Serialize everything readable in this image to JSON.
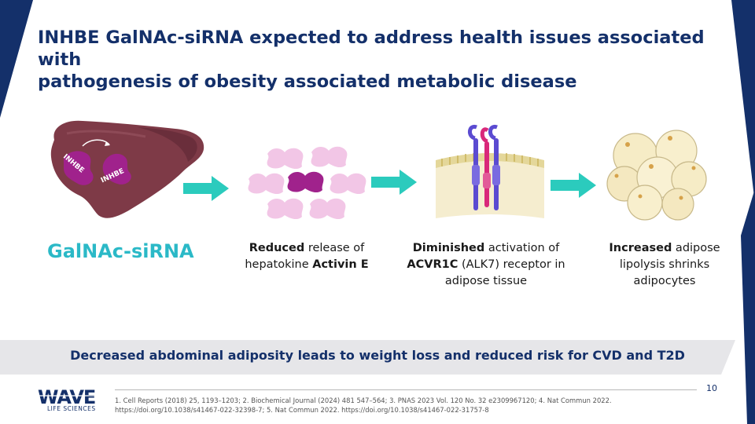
{
  "title": {
    "line1": "INHBE GalNAc-siRNA expected to address health issues associated with",
    "line2": "pathogenesis of obesity associated metabolic disease"
  },
  "liver": {
    "label_1": "INHBE",
    "label_2": "INHBE"
  },
  "galnac_label": "GalNAc-siRNA",
  "steps": [
    {
      "bold1": "Reduced",
      "text1": " release of",
      "text2": "hepatokine ",
      "bold2": "Activin E"
    },
    {
      "bold1": "Diminished",
      "text1": " activation of",
      "bold2": "ACVR1C",
      "text2": " (ALK7) receptor in",
      "text3": "adipose tissue"
    },
    {
      "bold1": "Increased",
      "text1": " adipose",
      "text2": "lipolysis shrinks",
      "text3": "adipocytes"
    }
  ],
  "banner": "Decreased abdominal adiposity leads to weight loss and reduced risk for CVD and T2D",
  "page_number": "10",
  "references": "1. Cell Reports (2018) 25, 1193–1203; 2. Biochemical Journal (2024) 481 547–564; 3. PNAS 2023 Vol. 120 No. 32 e2309967120; 4. Nat Commun 2022. https://doi.org/10.1038/s41467-022-32398-7;  5. Nat Commun 2022. https://doi.org/10.1038/s41467-022-31757-8",
  "logo": {
    "name": "WAVE",
    "sub": "LIFE SCIENCES"
  },
  "colors": {
    "navy": "#14306a",
    "teal": "#2bcbbd",
    "galnac": "#2bb9c7",
    "liver": "#7e3a47",
    "magenta": "#a0228c",
    "banner": "#e6e6e9"
  },
  "icons": [
    "liver-illustration",
    "arrow-right-icon",
    "activin-protein-icon",
    "receptor-membrane-illustration",
    "adipocyte-cluster-illustration"
  ]
}
